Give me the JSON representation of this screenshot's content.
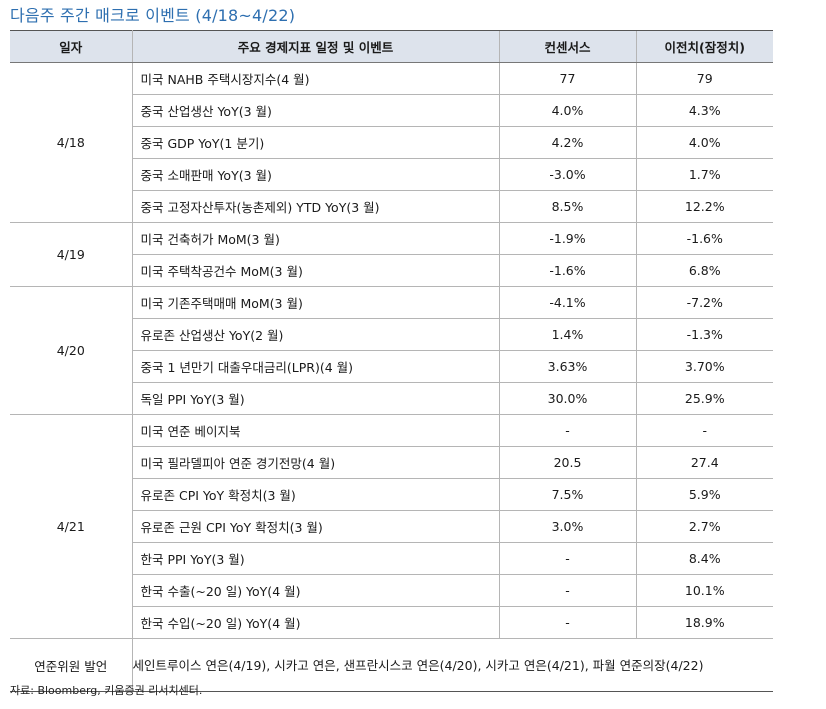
{
  "title": "다음주 주간 매크로 이벤트 (4/18~4/22)",
  "headers": [
    "일자",
    "주요 경제지표 일정 및 이벤트",
    "컨센서스",
    "이전치(잠정치)"
  ],
  "groups": [
    {
      "date": "4/18",
      "rows": [
        {
          "event": "미국 NAHB 주택시장지수(4 월)",
          "consensus": "77",
          "previous": "79"
        },
        {
          "event": "중국 산업생산 YoY(3 월)",
          "consensus": "4.0%",
          "previous": "4.3%"
        },
        {
          "event": "중국 GDP YoY(1 분기)",
          "consensus": "4.2%",
          "previous": "4.0%"
        },
        {
          "event": "중국 소매판매 YoY(3 월)",
          "consensus": "-3.0%",
          "previous": "1.7%"
        },
        {
          "event": "중국 고정자산투자(농촌제외) YTD YoY(3 월)",
          "consensus": "8.5%",
          "previous": "12.2%"
        }
      ]
    },
    {
      "date": "4/19",
      "rows": [
        {
          "event": "미국 건축허가 MoM(3 월)",
          "consensus": "-1.9%",
          "previous": "-1.6%"
        },
        {
          "event": "미국 주택착공건수 MoM(3 월)",
          "consensus": "-1.6%",
          "previous": "6.8%"
        }
      ]
    },
    {
      "date": "4/20",
      "rows": [
        {
          "event": "미국 기존주택매매 MoM(3 월)",
          "consensus": "-4.1%",
          "previous": "-7.2%"
        },
        {
          "event": "유로존 산업생산 YoY(2 월)",
          "consensus": "1.4%",
          "previous": "-1.3%"
        },
        {
          "event": "중국 1 년만기 대출우대금리(LPR)(4 월)",
          "consensus": "3.63%",
          "previous": "3.70%"
        },
        {
          "event": "독일 PPI YoY(3 월)",
          "consensus": "30.0%",
          "previous": "25.9%"
        }
      ]
    },
    {
      "date": "4/21",
      "rows": [
        {
          "event": "미국 연준 베이지북",
          "consensus": "-",
          "previous": "-"
        },
        {
          "event": "미국 필라델피아 연준 경기전망(4 월)",
          "consensus": "20.5",
          "previous": "27.4"
        },
        {
          "event": "유로존 CPI YoY 확정치(3 월)",
          "consensus": "7.5%",
          "previous": "5.9%"
        },
        {
          "event": "유로존 근원 CPI YoY 확정치(3 월)",
          "consensus": "3.0%",
          "previous": "2.7%"
        },
        {
          "event": "한국 PPI YoY(3 월)",
          "consensus": "-",
          "previous": "8.4%"
        },
        {
          "event": "한국 수출(~20 일) YoY(4 월)",
          "consensus": "-",
          "previous": "10.1%"
        },
        {
          "event": "한국 수입(~20 일) YoY(4 월)",
          "consensus": "-",
          "previous": "18.9%"
        }
      ]
    }
  ],
  "fed_speech": {
    "label": "연준위원 발언",
    "text": "세인트루이스 연은(4/19), 시카고 연은, 샌프란시스코 연은(4/20), 시카고 연은(4/21), 파월 연준의장(4/22)"
  },
  "source": "자료: Bloomberg, 키움증권 리서치센터."
}
